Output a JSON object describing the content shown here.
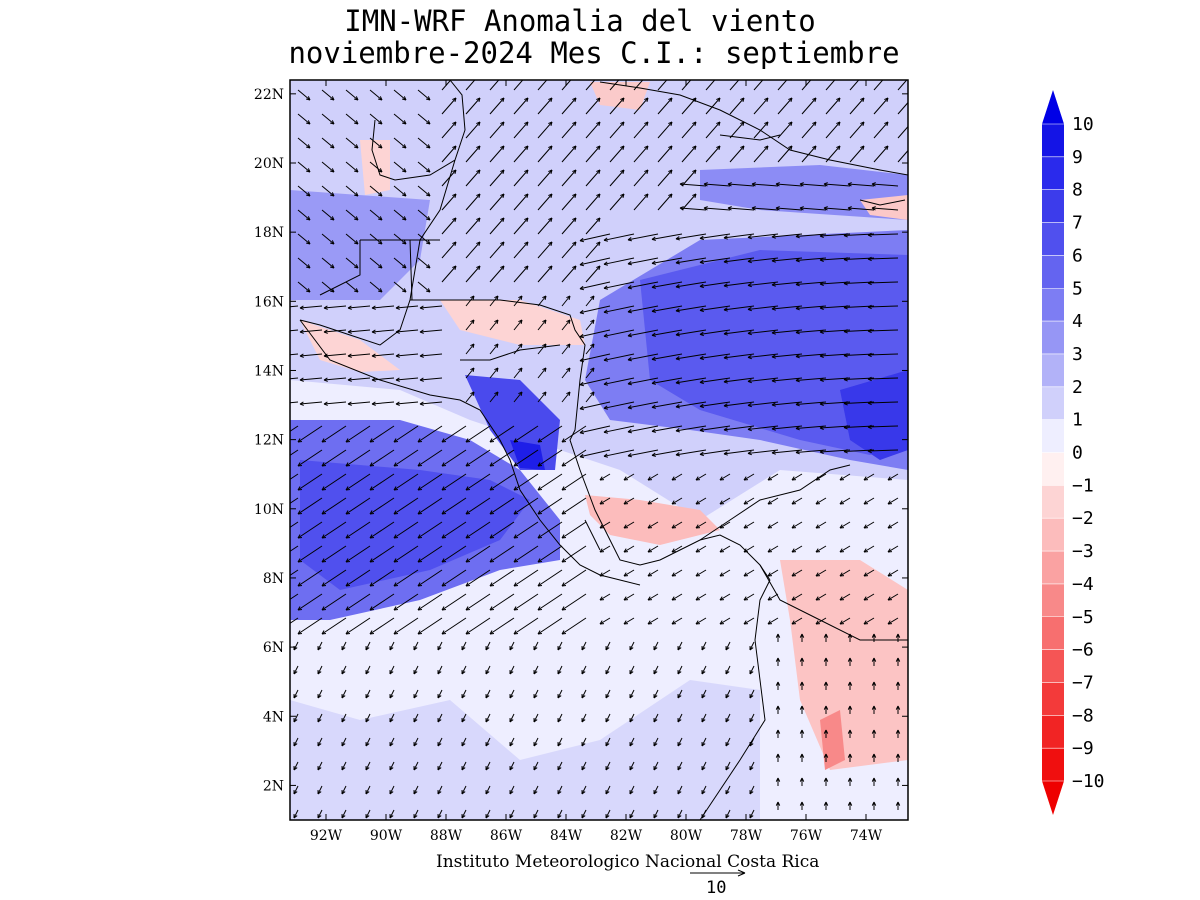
{
  "title": {
    "line1": "IMN-WRF Anomalia del viento",
    "line2": "noviembre-2024 Mes C.I.: septiembre"
  },
  "map": {
    "lon_range": [
      -93.2,
      -72.6
    ],
    "lat_range": [
      1.0,
      22.4
    ],
    "lat_ticks": [
      "22N",
      "20N",
      "18N",
      "16N",
      "14N",
      "12N",
      "10N",
      "8N",
      "6N",
      "4N",
      "2N"
    ],
    "lon_ticks": [
      "92W",
      "90W",
      "88W",
      "86W",
      "84W",
      "82W",
      "80W",
      "78W",
      "76W",
      "74W"
    ],
    "lat_tick_values": [
      22,
      20,
      18,
      16,
      14,
      12,
      10,
      8,
      6,
      4,
      2
    ],
    "lon_tick_values": [
      -92,
      -90,
      -88,
      -86,
      -84,
      -82,
      -80,
      -78,
      -76,
      -74
    ]
  },
  "colorbar": {
    "labels": [
      "10",
      "9",
      "8",
      "7",
      "6",
      "5",
      "4",
      "3",
      "2",
      "1",
      "0",
      "−1",
      "−2",
      "−3",
      "−4",
      "−5",
      "−6",
      "−7",
      "−8",
      "−9",
      "−10"
    ],
    "colors": [
      "#1414e6",
      "#2a2aec",
      "#3c3ceb",
      "#5050ee",
      "#6464f0",
      "#7d7df3",
      "#9696f5",
      "#b2b2f8",
      "#d0d0fb",
      "#eeeeff",
      "#fff0f0",
      "#fdd4d4",
      "#fcbcbc",
      "#faa2a2",
      "#f88989",
      "#f76f6f",
      "#f55555",
      "#f33a3a",
      "#f12424",
      "#f00f0f"
    ],
    "top_arrow_color": "#0000e6",
    "bottom_arrow_color": "#ee0000"
  },
  "footer": {
    "institution": "Instituto Meteorologico Nacional Costa Rica",
    "reference_vector": "10"
  }
}
